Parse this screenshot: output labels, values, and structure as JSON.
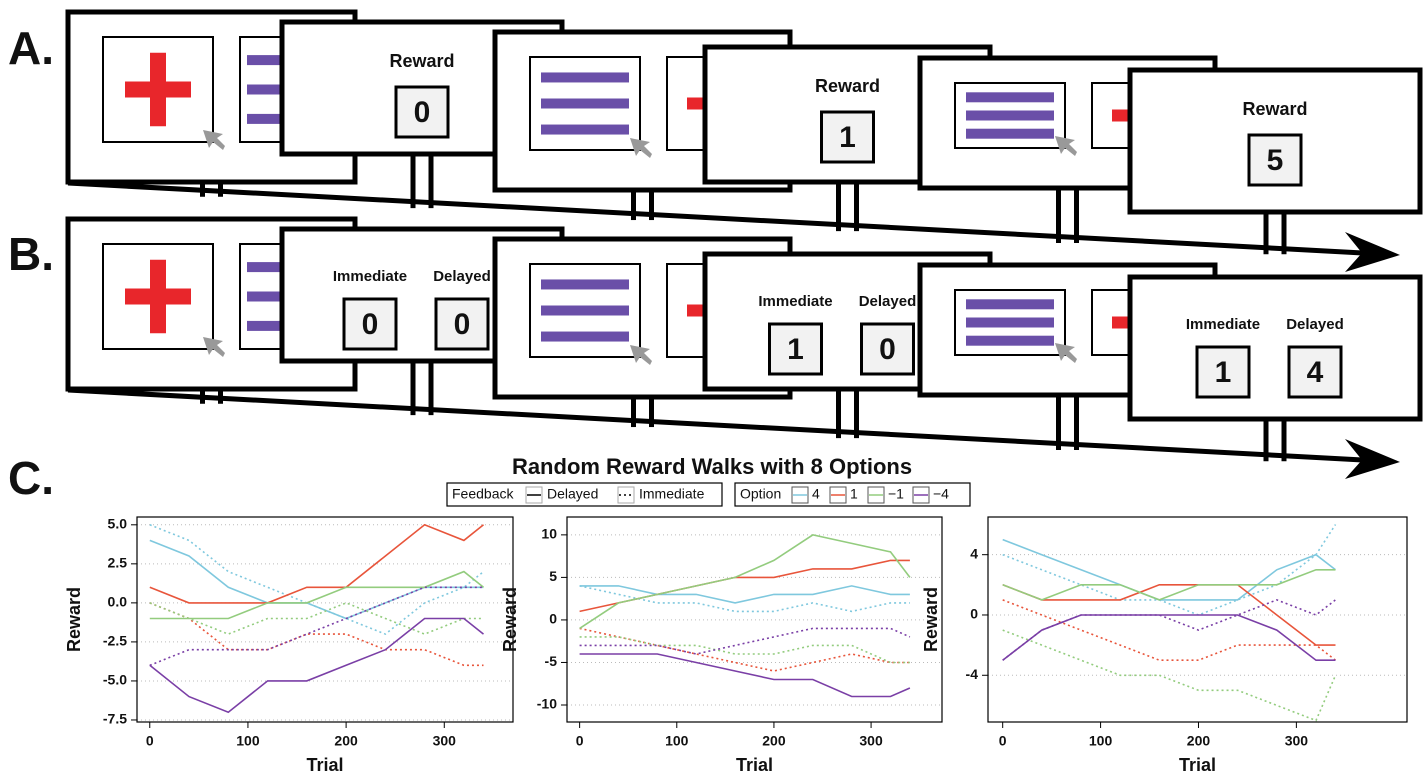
{
  "panels": [
    {
      "label": "A.",
      "feedback": [
        {
          "items": [
            {
              "title": "Reward",
              "value": 0
            }
          ]
        },
        {
          "items": [
            {
              "title": "Reward",
              "value": 1
            }
          ]
        },
        {
          "items": [
            {
              "title": "Reward",
              "value": 5
            }
          ]
        }
      ]
    },
    {
      "label": "B.",
      "feedback": [
        {
          "items": [
            {
              "title": "Immediate",
              "value": 0
            },
            {
              "title": "Delayed",
              "value": 0
            }
          ]
        },
        {
          "items": [
            {
              "title": "Immediate",
              "value": 1
            },
            {
              "title": "Delayed",
              "value": 0
            }
          ]
        },
        {
          "items": [
            {
              "title": "Immediate",
              "value": 1
            },
            {
              "title": "Delayed",
              "value": 4
            }
          ]
        }
      ]
    }
  ],
  "panel_c": {
    "label": "C.",
    "title": "Random Reward Walks with 8 Options",
    "legend": {
      "feedback_title": "Feedback",
      "feedback": [
        {
          "label": "Delayed",
          "dash": "solid"
        },
        {
          "label": "Immediate",
          "dash": "dotted"
        }
      ],
      "option_title": "Option",
      "options": [
        {
          "label": "4",
          "color": "#7fc8de"
        },
        {
          "label": "1",
          "color": "#e8553b"
        },
        {
          "label": "−1",
          "color": "#93cc7e"
        },
        {
          "label": "−4",
          "color": "#7a3fa6"
        }
      ]
    }
  },
  "chart_data": [
    {
      "type": "line",
      "x_label": "Trial",
      "y_label": "Reward",
      "x": [
        0,
        40,
        80,
        120,
        160,
        200,
        240,
        280,
        320,
        340
      ],
      "xlim": [
        -13,
        370
      ],
      "ylim": [
        -7.63,
        5.5
      ],
      "xticks": [
        0,
        100,
        200,
        300
      ],
      "yticks": [
        {
          "value": 5,
          "label": "5.0"
        },
        2.5,
        {
          "value": 0,
          "label": "0.0"
        },
        -2.5,
        {
          "value": -5,
          "label": "-5.0"
        },
        -7.5
      ],
      "grid": true,
      "series": [
        {
          "color": "#7fc8de",
          "dash": "solid",
          "values": [
            4,
            3,
            1,
            0,
            0,
            -1,
            0,
            1,
            1,
            1
          ]
        },
        {
          "color": "#7fc8de",
          "dash": "dotted",
          "values": [
            5,
            4,
            2,
            1,
            0,
            -1,
            -2,
            0,
            1,
            2
          ]
        },
        {
          "color": "#e8553b",
          "dash": "solid",
          "values": [
            1,
            0,
            0,
            0,
            1,
            1,
            3,
            5,
            4,
            5
          ]
        },
        {
          "color": "#e8553b",
          "dash": "dotted",
          "values": [
            0,
            -1,
            -3,
            -3,
            -2,
            -2,
            -3,
            -3,
            -4,
            -4
          ]
        },
        {
          "color": "#93cc7e",
          "dash": "solid",
          "values": [
            -1,
            -1,
            -1,
            0,
            0,
            1,
            1,
            1,
            2,
            1
          ]
        },
        {
          "color": "#93cc7e",
          "dash": "dotted",
          "values": [
            0,
            -1,
            -2,
            -1,
            -1,
            0,
            -1,
            -2,
            -1,
            -1
          ]
        },
        {
          "color": "#7a3fa6",
          "dash": "solid",
          "values": [
            -4,
            -6,
            -7,
            -5,
            -5,
            -4,
            -3,
            -1,
            -1,
            -2
          ]
        },
        {
          "color": "#7a3fa6",
          "dash": "dotted",
          "values": [
            -4,
            -3,
            -3,
            -3,
            -2,
            -1,
            0,
            1,
            1,
            1
          ]
        }
      ]
    },
    {
      "type": "line",
      "x_label": "Trial",
      "y_label": "Reward",
      "x": [
        0,
        40,
        80,
        120,
        160,
        200,
        240,
        280,
        320,
        340
      ],
      "xlim": [
        -13,
        373
      ],
      "ylim": [
        -12,
        12.1
      ],
      "xticks": [
        0,
        100,
        200,
        300
      ],
      "yticks": [
        10,
        5,
        0,
        -5,
        -10
      ],
      "grid": true,
      "series": [
        {
          "color": "#7fc8de",
          "dash": "solid",
          "values": [
            4,
            4,
            3,
            3,
            2,
            3,
            3,
            4,
            3,
            3
          ]
        },
        {
          "color": "#7fc8de",
          "dash": "dotted",
          "values": [
            4,
            3,
            2,
            2,
            1,
            1,
            2,
            1,
            2,
            2
          ]
        },
        {
          "color": "#e8553b",
          "dash": "solid",
          "values": [
            1,
            2,
            3,
            4,
            5,
            5,
            6,
            6,
            7,
            7
          ]
        },
        {
          "color": "#e8553b",
          "dash": "dotted",
          "values": [
            -1,
            -2,
            -3,
            -4,
            -5,
            -6,
            -5,
            -4,
            -5,
            -5
          ]
        },
        {
          "color": "#93cc7e",
          "dash": "solid",
          "values": [
            -1,
            2,
            3,
            4,
            5,
            7,
            10,
            9,
            8,
            5
          ]
        },
        {
          "color": "#93cc7e",
          "dash": "dotted",
          "values": [
            -2,
            -2,
            -3,
            -3,
            -4,
            -4,
            -3,
            -3,
            -5,
            -5
          ]
        },
        {
          "color": "#7a3fa6",
          "dash": "solid",
          "values": [
            -4,
            -4,
            -4,
            -5,
            -6,
            -7,
            -7,
            -9,
            -9,
            -8
          ]
        },
        {
          "color": "#7a3fa6",
          "dash": "dotted",
          "values": [
            -3,
            -3,
            -3,
            -4,
            -3,
            -2,
            -1,
            -1,
            -1,
            -2
          ]
        }
      ]
    },
    {
      "type": "line",
      "x_label": "Trial",
      "y_label": "Reward",
      "x": [
        0,
        40,
        80,
        120,
        160,
        200,
        240,
        280,
        320,
        340
      ],
      "xlim": [
        -15,
        413
      ],
      "ylim": [
        -7.1,
        6.5
      ],
      "xticks": [
        0,
        100,
        200,
        300
      ],
      "yticks": [
        4,
        0,
        -4
      ],
      "grid": true,
      "series": [
        {
          "color": "#7fc8de",
          "dash": "solid",
          "values": [
            5,
            4,
            3,
            2,
            1,
            1,
            1,
            3,
            4,
            3
          ]
        },
        {
          "color": "#7fc8de",
          "dash": "dotted",
          "values": [
            4,
            3,
            2,
            1,
            1,
            0,
            1,
            2,
            4,
            6
          ]
        },
        {
          "color": "#e8553b",
          "dash": "solid",
          "values": [
            2,
            1,
            1,
            1,
            2,
            2,
            2,
            0,
            -2,
            -2
          ]
        },
        {
          "color": "#e8553b",
          "dash": "dotted",
          "values": [
            1,
            0,
            -1,
            -2,
            -3,
            -3,
            -2,
            -2,
            -2,
            -3
          ]
        },
        {
          "color": "#93cc7e",
          "dash": "solid",
          "values": [
            2,
            1,
            2,
            2,
            1,
            2,
            2,
            2,
            3,
            3
          ]
        },
        {
          "color": "#93cc7e",
          "dash": "dotted",
          "values": [
            -1,
            -2,
            -3,
            -4,
            -4,
            -5,
            -5,
            -6,
            -7,
            -4
          ]
        },
        {
          "color": "#7a3fa6",
          "dash": "solid",
          "values": [
            -3,
            -1,
            0,
            0,
            0,
            0,
            0,
            -1,
            -3,
            -3
          ]
        },
        {
          "color": "#7a3fa6",
          "dash": "dotted",
          "values": [
            -3,
            -1,
            0,
            0,
            0,
            -1,
            0,
            1,
            0,
            1
          ]
        }
      ]
    }
  ]
}
